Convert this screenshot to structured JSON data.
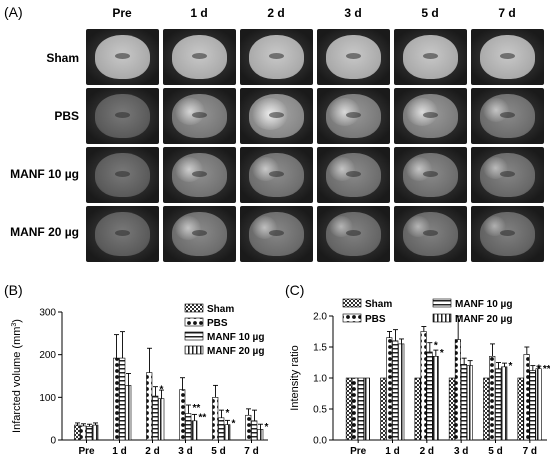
{
  "panels": {
    "a": "(A)",
    "b": "(B)",
    "c": "(C)"
  },
  "mri_grid": {
    "columns": [
      "Pre",
      "1 d",
      "2 d",
      "3 d",
      "5 d",
      "7 d"
    ],
    "rows": [
      "Sham",
      "PBS",
      "MANF 10 µg",
      "MANF 20 µg"
    ],
    "lesion_level": [
      [
        0,
        0,
        0,
        0,
        0,
        0
      ],
      [
        0,
        0.55,
        0.9,
        0.6,
        0.65,
        0.35
      ],
      [
        0,
        0.45,
        0.4,
        0.35,
        0.35,
        0.25
      ],
      [
        0,
        0.35,
        0.3,
        0.2,
        0.2,
        0.15
      ]
    ]
  },
  "chart_data": [
    {
      "type": "bar",
      "ylabel": "Infarcted volume (mm3)",
      "ylim": [
        0,
        300
      ],
      "yticks": [
        0,
        100,
        200,
        300
      ],
      "categories": [
        "Pre",
        "1 d",
        "2 d",
        "3 d",
        "5 d",
        "7 d"
      ],
      "series": [
        {
          "name": "Sham",
          "values": [
            35,
            0,
            0,
            0,
            0,
            0
          ],
          "errors": [
            5,
            0,
            0,
            0,
            0,
            0
          ]
        },
        {
          "name": "PBS",
          "values": [
            33,
            192,
            158,
            118,
            100,
            58
          ],
          "errors": [
            5,
            55,
            57,
            28,
            28,
            15
          ]
        },
        {
          "name": "MANF 10 µg",
          "values": [
            32,
            192,
            103,
            62,
            52,
            45
          ],
          "errors": [
            5,
            62,
            22,
            20,
            18,
            25
          ]
        },
        {
          "name": "MANF 20 µg",
          "values": [
            35,
            128,
            97,
            45,
            36,
            25
          ],
          "errors": [
            5,
            28,
            20,
            15,
            10,
            12
          ]
        }
      ],
      "annotations": [
        {
          "category": "2 d",
          "series": "MANF 10 µg",
          "text": "*"
        },
        {
          "category": "3 d",
          "series": "MANF 10 µg",
          "text": "**"
        },
        {
          "category": "3 d",
          "series": "MANF 20 µg",
          "text": "**"
        },
        {
          "category": "5 d",
          "series": "MANF 10 µg",
          "text": "*"
        },
        {
          "category": "5 d",
          "series": "MANF 20 µg",
          "text": "*"
        },
        {
          "category": "7 d",
          "series": "MANF 20 µg",
          "text": "*"
        }
      ],
      "legend": "top-right"
    },
    {
      "type": "bar",
      "ylabel": "Intensity ratio",
      "ylim": [
        0,
        2.0
      ],
      "yticks": [
        0.0,
        0.5,
        1.0,
        1.5,
        2.0
      ],
      "categories": [
        "Pre",
        "1 d",
        "2 d",
        "3 d",
        "5 d",
        "7 d"
      ],
      "series": [
        {
          "name": "Sham",
          "values": [
            1.0,
            1.0,
            1.0,
            1.0,
            1.0,
            1.0
          ],
          "errors": [
            0,
            0,
            0,
            0,
            0,
            0
          ]
        },
        {
          "name": "PBS",
          "values": [
            1.0,
            1.65,
            1.75,
            1.62,
            1.35,
            1.38
          ],
          "errors": [
            0,
            0.1,
            0.08,
            0.38,
            0.2,
            0.12
          ]
        },
        {
          "name": "MANF 10 µg",
          "values": [
            1.0,
            1.6,
            1.42,
            1.22,
            1.15,
            1.12
          ],
          "errors": [
            0,
            0.18,
            0.15,
            0.1,
            0.1,
            0.08
          ]
        },
        {
          "name": "MANF 20 µg",
          "values": [
            1.0,
            1.55,
            1.35,
            1.2,
            1.18,
            1.15
          ],
          "errors": [
            0,
            0.08,
            0.1,
            0.08,
            0.06,
            0.04
          ]
        }
      ],
      "annotations": [
        {
          "category": "2 d",
          "series": "MANF 10 µg",
          "text": "*"
        },
        {
          "category": "2 d",
          "series": "MANF 20 µg",
          "text": "*"
        },
        {
          "category": "5 d",
          "series": "MANF 20 µg",
          "text": "*"
        },
        {
          "category": "7 d",
          "series": "MANF 10 µg",
          "text": "*"
        },
        {
          "category": "7 d",
          "series": "MANF 20 µg",
          "text": "**"
        }
      ],
      "legend": "top"
    }
  ]
}
